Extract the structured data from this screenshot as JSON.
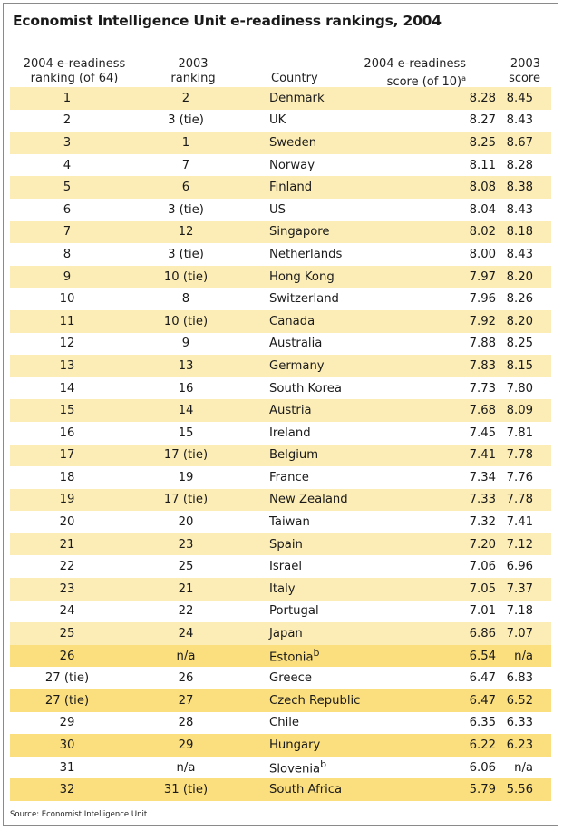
{
  "title": "Economist Intelligence Unit e-readiness rankings, 2004",
  "headers": {
    "rank2004": [
      "2004 e-readiness",
      "ranking (of 64)"
    ],
    "rank2003": [
      "2003",
      "ranking"
    ],
    "country": "Country",
    "score2004": [
      "2004 e-readiness",
      "score (of 10)"
    ],
    "score2004_note": "a",
    "score2003": [
      "2003",
      "score"
    ]
  },
  "rows": [
    {
      "r04": "1",
      "r03": "2",
      "country": "Denmark",
      "s04": "8.28",
      "s03": "8.45",
      "note": "",
      "style": "alt"
    },
    {
      "r04": "2",
      "r03": "3 (tie)",
      "country": "UK",
      "s04": "8.27",
      "s03": "8.43",
      "note": "",
      "style": ""
    },
    {
      "r04": "3",
      "r03": "1",
      "country": "Sweden",
      "s04": "8.25",
      "s03": "8.67",
      "note": "",
      "style": "alt"
    },
    {
      "r04": "4",
      "r03": "7",
      "country": "Norway",
      "s04": "8.11",
      "s03": "8.28",
      "note": "",
      "style": ""
    },
    {
      "r04": "5",
      "r03": "6",
      "country": "Finland",
      "s04": "8.08",
      "s03": "8.38",
      "note": "",
      "style": "alt"
    },
    {
      "r04": "6",
      "r03": "3 (tie)",
      "country": "US",
      "s04": "8.04",
      "s03": "8.43",
      "note": "",
      "style": ""
    },
    {
      "r04": "7",
      "r03": "12",
      "country": "Singapore",
      "s04": "8.02",
      "s03": "8.18",
      "note": "",
      "style": "alt"
    },
    {
      "r04": "8",
      "r03": "3 (tie)",
      "country": "Netherlands",
      "s04": "8.00",
      "s03": "8.43",
      "note": "",
      "style": ""
    },
    {
      "r04": "9",
      "r03": "10 (tie)",
      "country": "Hong Kong",
      "s04": "7.97",
      "s03": "8.20",
      "note": "",
      "style": "alt"
    },
    {
      "r04": "10",
      "r03": "8",
      "country": "Switzerland",
      "s04": "7.96",
      "s03": "8.26",
      "note": "",
      "style": ""
    },
    {
      "r04": "11",
      "r03": "10 (tie)",
      "country": "Canada",
      "s04": "7.92",
      "s03": "8.20",
      "note": "",
      "style": "alt"
    },
    {
      "r04": "12",
      "r03": "9",
      "country": "Australia",
      "s04": "7.88",
      "s03": "8.25",
      "note": "",
      "style": ""
    },
    {
      "r04": "13",
      "r03": "13",
      "country": "Germany",
      "s04": "7.83",
      "s03": "8.15",
      "note": "",
      "style": "alt"
    },
    {
      "r04": "14",
      "r03": "16",
      "country": "South Korea",
      "s04": "7.73",
      "s03": "7.80",
      "note": "",
      "style": ""
    },
    {
      "r04": "15",
      "r03": "14",
      "country": "Austria",
      "s04": "7.68",
      "s03": "8.09",
      "note": "",
      "style": "alt"
    },
    {
      "r04": "16",
      "r03": "15",
      "country": "Ireland",
      "s04": "7.45",
      "s03": "7.81",
      "note": "",
      "style": ""
    },
    {
      "r04": "17",
      "r03": "17 (tie)",
      "country": "Belgium",
      "s04": "7.41",
      "s03": "7.78",
      "note": "",
      "style": "alt"
    },
    {
      "r04": "18",
      "r03": "19",
      "country": "France",
      "s04": "7.34",
      "s03": "7.76",
      "note": "",
      "style": ""
    },
    {
      "r04": "19",
      "r03": "17 (tie)",
      "country": "New Zealand",
      "s04": "7.33",
      "s03": "7.78",
      "note": "",
      "style": "alt"
    },
    {
      "r04": "20",
      "r03": "20",
      "country": "Taiwan",
      "s04": "7.32",
      "s03": "7.41",
      "note": "",
      "style": ""
    },
    {
      "r04": "21",
      "r03": "23",
      "country": "Spain",
      "s04": "7.20",
      "s03": "7.12",
      "note": "",
      "style": "alt"
    },
    {
      "r04": "22",
      "r03": "25",
      "country": "Israel",
      "s04": "7.06",
      "s03": "6.96",
      "note": "",
      "style": ""
    },
    {
      "r04": "23",
      "r03": "21",
      "country": "Italy",
      "s04": "7.05",
      "s03": "7.37",
      "note": "",
      "style": "alt"
    },
    {
      "r04": "24",
      "r03": "22",
      "country": "Portugal",
      "s04": "7.01",
      "s03": "7.18",
      "note": "",
      "style": ""
    },
    {
      "r04": "25",
      "r03": "24",
      "country": "Japan",
      "s04": "6.86",
      "s03": "7.07",
      "note": "",
      "style": "alt"
    },
    {
      "r04": "26",
      "r03": "n/a",
      "country": "Estonia",
      "s04": "6.54",
      "s03": "n/a",
      "note": "b",
      "style": "hl"
    },
    {
      "r04": "27 (tie)",
      "r03": "26",
      "country": "Greece",
      "s04": "6.47",
      "s03": "6.83",
      "note": "",
      "style": ""
    },
    {
      "r04": "27 (tie)",
      "r03": "27",
      "country": "Czech Republic",
      "s04": "6.47",
      "s03": "6.52",
      "note": "",
      "style": "hl"
    },
    {
      "r04": "29",
      "r03": "28",
      "country": "Chile",
      "s04": "6.35",
      "s03": "6.33",
      "note": "",
      "style": ""
    },
    {
      "r04": "30",
      "r03": "29",
      "country": "Hungary",
      "s04": "6.22",
      "s03": "6.23",
      "note": "",
      "style": "hl"
    },
    {
      "r04": "31",
      "r03": "n/a",
      "country": "Slovenia",
      "s04": "6.06",
      "s03": "n/a",
      "note": "b",
      "style": ""
    },
    {
      "r04": "32",
      "r03": "31 (tie)",
      "country": "South Africa",
      "s04": "5.79",
      "s03": "5.56",
      "note": "",
      "style": "hl"
    }
  ],
  "source": "Source: Economist Intelligence Unit",
  "colors": {
    "row_alt": "#fcedb6",
    "row_highlight": "#fbdf7e",
    "frame": "#8a8a8a"
  }
}
